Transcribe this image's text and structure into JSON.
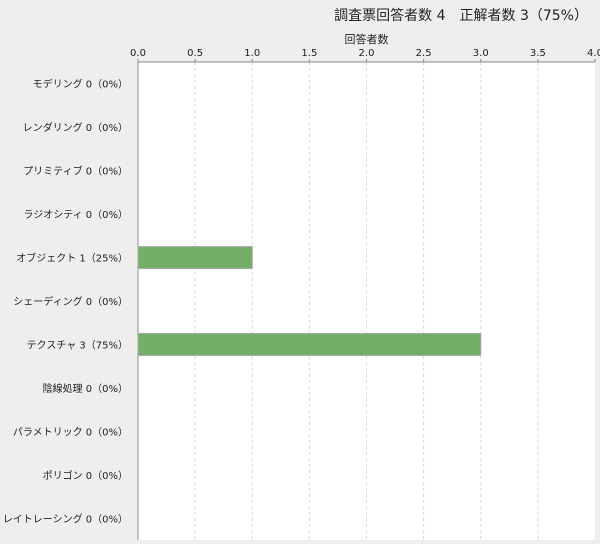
{
  "chart_data": {
    "type": "bar",
    "orientation": "horizontal",
    "title": "調査票回答者数 4　正解者数 3（75%）",
    "xlabel": "回答者数",
    "ylabel": "",
    "xlim": [
      0,
      4.0
    ],
    "ticks": [
      "0.0",
      "0.5",
      "1.0",
      "1.5",
      "2.0",
      "2.5",
      "3.0",
      "3.5",
      "4.0"
    ],
    "categories": [
      "モデリング 0（0%）",
      "レンダリング 0（0%）",
      "プリミティブ 0（0%）",
      "ラジオシティ 0（0%）",
      "オブジェクト 1（25%）",
      "シェーディング 0（0%）",
      "テクスチャ 3（75%）",
      "陰線処理 0（0%）",
      "パラメトリック 0（0%）",
      "ポリゴン 0（0%）",
      "レイトレーシング 0（0%）"
    ],
    "values": [
      0,
      0,
      0,
      0,
      1,
      0,
      3,
      0,
      0,
      0,
      0
    ],
    "grid": true,
    "axis_position": "top",
    "bar_color": "#73ae69"
  }
}
